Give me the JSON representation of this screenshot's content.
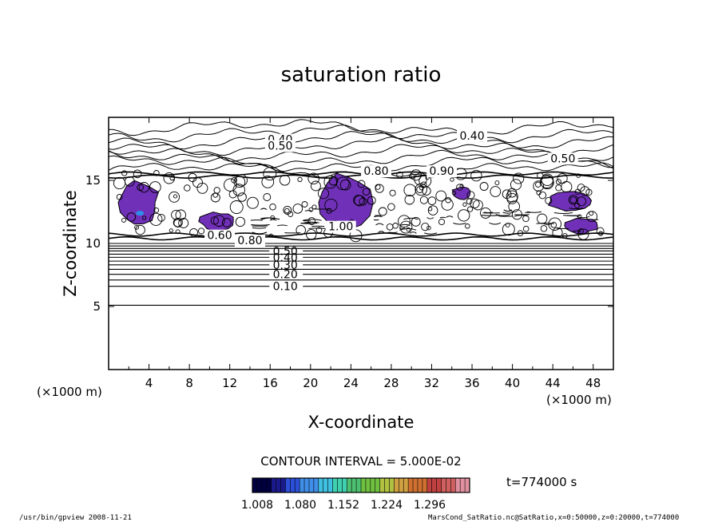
{
  "chart_data": {
    "type": "contour",
    "title": "saturation ratio",
    "xlabel": "X-coordinate",
    "ylabel": "Z-coordinate",
    "x_unit": "(×1000 m)",
    "y_unit": "(×1000 m)",
    "xlim": [
      0,
      50
    ],
    "ylim": [
      0,
      20
    ],
    "x_ticks": [
      4,
      8,
      12,
      16,
      20,
      24,
      28,
      32,
      36,
      40,
      44,
      48
    ],
    "y_ticks": [
      5,
      10,
      15
    ],
    "contour_interval_text": "CONTOUR INTERVAL = 5.000E-02",
    "time_text": "t=774000 s",
    "colorbar": {
      "colors": [
        "#000040",
        "#1a1a8c",
        "#2c4fd8",
        "#3f8ee8",
        "#3fc0e0",
        "#3fd0b0",
        "#4cc070",
        "#70c040",
        "#b0c040",
        "#d0a040",
        "#d07030",
        "#c04040",
        "#d06060",
        "#e090a0"
      ],
      "tick_labels": [
        "1.008",
        "1.080",
        "1.152",
        "1.224",
        "1.296"
      ]
    },
    "stable_contours": [
      {
        "z": 5.1,
        "label": ""
      },
      {
        "z": 6.6,
        "label": "0.10"
      },
      {
        "z": 7.1,
        "label": ""
      },
      {
        "z": 7.55,
        "label": "0.20"
      },
      {
        "z": 7.95,
        "label": ""
      },
      {
        "z": 8.3,
        "label": "0.30"
      },
      {
        "z": 8.6,
        "label": ""
      },
      {
        "z": 8.9,
        "label": "0.40"
      },
      {
        "z": 9.15,
        "label": ""
      },
      {
        "z": 9.4,
        "label": "0.50"
      },
      {
        "z": 9.6,
        "label": ""
      },
      {
        "z": 9.8,
        "label": ""
      },
      {
        "z": 10.0,
        "label": ""
      }
    ],
    "annotations": [
      {
        "text": "0.40",
        "x": 17,
        "z": 18.0
      },
      {
        "text": "0.50",
        "x": 17,
        "z": 17.5
      },
      {
        "text": "0.40",
        "x": 36,
        "z": 18.3
      },
      {
        "text": "0.50",
        "x": 45,
        "z": 16.5
      },
      {
        "text": "0.80",
        "x": 26.5,
        "z": 15.5
      },
      {
        "text": "0.90",
        "x": 33,
        "z": 15.5
      },
      {
        "text": "1.00",
        "x": 23,
        "z": 11.1
      },
      {
        "text": "0.60",
        "x": 11,
        "z": 10.4
      },
      {
        "text": "0.80",
        "x": 14,
        "z": 10.0
      }
    ],
    "supersaturated_regions": [
      {
        "x": [
          1,
          5
        ],
        "z": [
          11.5,
          15
        ]
      },
      {
        "x": [
          9,
          12.5
        ],
        "z": [
          11,
          12.5
        ]
      },
      {
        "x": [
          20.5,
          26
        ],
        "z": [
          11,
          15.5
        ]
      },
      {
        "x": [
          34,
          36
        ],
        "z": [
          13.5,
          14.5
        ]
      },
      {
        "x": [
          43.5,
          48
        ],
        "z": [
          12.6,
          14.2
        ]
      },
      {
        "x": [
          45,
          48.5
        ],
        "z": [
          10.8,
          12
        ]
      }
    ]
  },
  "footer": {
    "left": "/usr/bin/gpview   2008-11-21",
    "right": "MarsCond_SatRatio.nc@SatRatio,x=0:50000,z=0:20000,t=774000"
  }
}
